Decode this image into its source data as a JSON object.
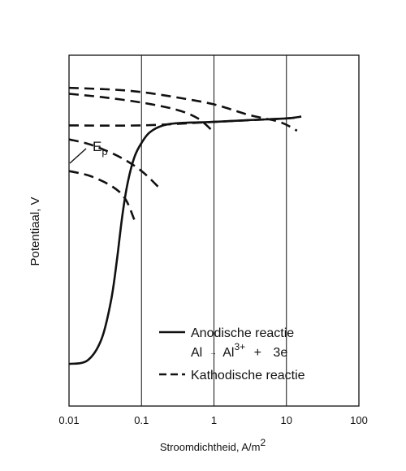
{
  "chart_data": {
    "type": "line",
    "title": "",
    "xlabel": "Stroomdichtheid, A/m",
    "xlabel_sup": "2",
    "ylabel": "Potentiaal, V",
    "x_scale": "log",
    "x_ticks": [
      "0.01",
      "0.1",
      "1",
      "10",
      "100"
    ],
    "xlim": [
      0.01,
      100
    ],
    "y_ticks": [],
    "grid": "vertical lines at each decade",
    "annotation": {
      "text": "E",
      "sub": "p"
    },
    "legend_placement": "bottom-right, inside plot",
    "legend": [
      {
        "style": "solid",
        "label": "Anodische reactie",
        "equation": {
          "a": "Al",
          "arrow": "→",
          "b": "Al",
          "b_sup": "3+",
          "plus": "+",
          "c": "3e"
        }
      },
      {
        "style": "dashed",
        "label": "Kathodische reactie"
      }
    ],
    "note": "y axis shows no numeric scale; y values are relative positions (0 = bottom, 1 = top of plot)",
    "series": [
      {
        "style": "solid",
        "x": [
          0.01,
          0.018,
          0.028,
          0.038,
          0.046,
          0.055,
          0.065,
          0.08,
          0.1,
          0.13,
          0.2,
          0.35,
          1,
          3,
          10,
          16
        ],
        "y": [
          0.12,
          0.13,
          0.19,
          0.3,
          0.42,
          0.55,
          0.64,
          0.71,
          0.75,
          0.78,
          0.8,
          0.807,
          0.81,
          0.815,
          0.82,
          0.825
        ]
      },
      {
        "style": "dashed",
        "x": [
          0.01,
          0.1,
          1,
          10,
          16
        ],
        "y": [
          0.8,
          0.8,
          0.81,
          0.82,
          0.825
        ]
      },
      {
        "style": "dashed",
        "x": [
          0.01,
          0.04,
          0.1,
          0.3,
          1,
          3,
          8,
          14
        ],
        "y": [
          0.907,
          0.902,
          0.895,
          0.88,
          0.86,
          0.83,
          0.81,
          0.785
        ]
      },
      {
        "style": "dashed",
        "x": [
          0.01,
          0.03,
          0.1,
          0.3,
          0.6,
          1.0
        ],
        "y": [
          0.89,
          0.88,
          0.865,
          0.845,
          0.82,
          0.78
        ]
      },
      {
        "style": "dashed",
        "x": [
          0.01,
          0.02,
          0.05,
          0.1,
          0.18
        ],
        "y": [
          0.76,
          0.745,
          0.71,
          0.67,
          0.62
        ]
      },
      {
        "style": "dashed",
        "x": [
          0.01,
          0.02,
          0.04,
          0.06,
          0.08
        ],
        "y": [
          0.67,
          0.655,
          0.625,
          0.59,
          0.53
        ]
      }
    ]
  }
}
